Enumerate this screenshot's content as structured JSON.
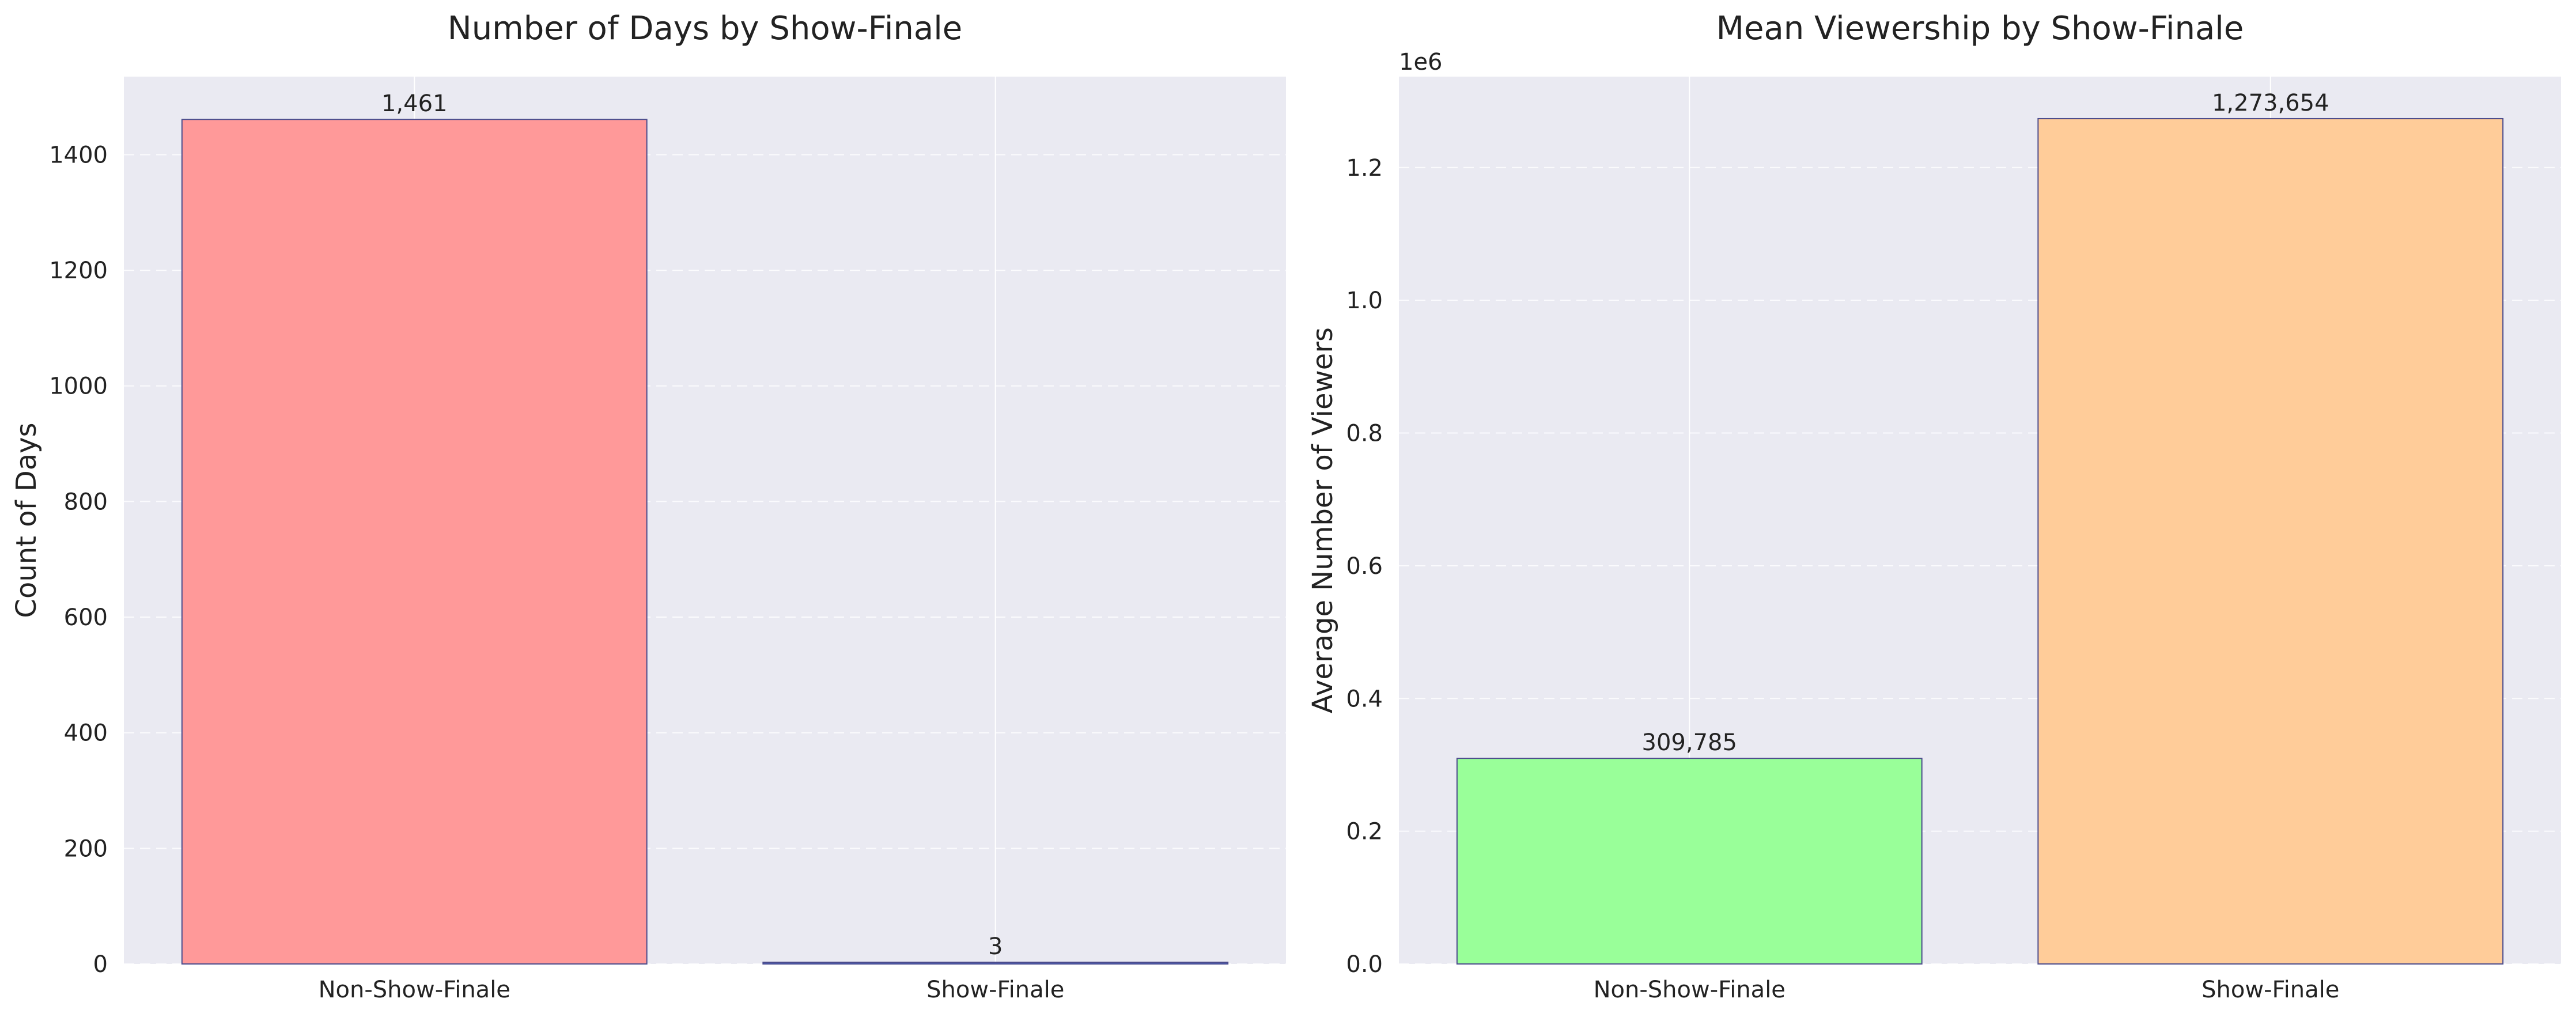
{
  "chart_data": [
    {
      "type": "bar",
      "title": "Number of Days by Show-Finale",
      "xlabel": "",
      "ylabel": "Count of Days",
      "categories": [
        "Non-Show-Finale",
        "Show-Finale"
      ],
      "values": [
        1461,
        3
      ],
      "data_labels": [
        "1,461",
        "3"
      ],
      "colors": [
        "#ff9999",
        "#4a6fd8"
      ],
      "ylim": [
        0,
        1535
      ],
      "yticks": [
        0,
        200,
        400,
        600,
        800,
        1000,
        1200,
        1400
      ],
      "ytick_labels": [
        "0",
        "200",
        "400",
        "600",
        "800",
        "1000",
        "1200",
        "1400"
      ],
      "offset_text": "",
      "grid": true
    },
    {
      "type": "bar",
      "title": "Mean Viewership by Show-Finale",
      "xlabel": "",
      "ylabel": "Average Number of Viewers",
      "categories": [
        "Non-Show-Finale",
        "Show-Finale"
      ],
      "values": [
        309785,
        1273654
      ],
      "data_labels": [
        "309,785",
        "1,273,654"
      ],
      "colors": [
        "#99ff99",
        "#ffcc99"
      ],
      "ylim": [
        0,
        1337000
      ],
      "yticks": [
        0,
        200000,
        400000,
        600000,
        800000,
        1000000,
        1200000
      ],
      "ytick_labels": [
        "0.0",
        "0.2",
        "0.4",
        "0.6",
        "0.8",
        "1.0",
        "1.2"
      ],
      "offset_text": "1e6",
      "grid": true
    }
  ]
}
